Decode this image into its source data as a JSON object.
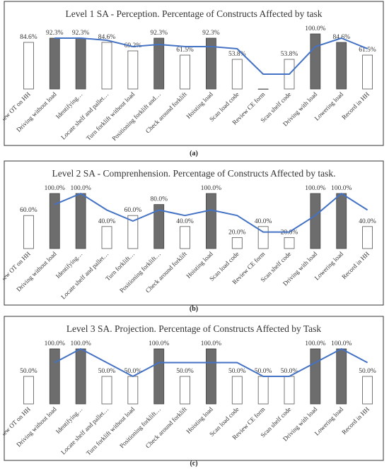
{
  "chart_data": [
    {
      "type": "bar",
      "title": "Level 1 SA - Perception. Percentage of Constructs Affected by task",
      "panel_label": "(a)",
      "categories": [
        "Review OT on HH",
        "Driving without load",
        "Identifying…",
        "Locate shelf and pallet…",
        "Turn forklift without load",
        "Positioning forklift and…",
        "Check around forklift",
        "Hoisting load",
        "Scan load code",
        "Review CE form",
        "Scan shelf code",
        "Driving with load",
        "Lowering load",
        "Record in HH"
      ],
      "values": [
        84.6,
        92.3,
        92.3,
        84.6,
        69.2,
        92.3,
        61.5,
        92.3,
        53.8,
        0,
        53.8,
        100.0,
        84.6,
        61.5
      ],
      "value_labels": [
        "84.6%",
        "92.3%",
        "92.3%",
        "84.6%",
        "69.2%",
        "92.3%",
        "61.5%",
        "92.3%",
        "53.8%",
        "",
        "53.8%",
        "100.0%",
        "84.6%",
        "61.5%"
      ],
      "bar_fill": [
        "white",
        "gray",
        "gray",
        "white",
        "white",
        "gray",
        "white",
        "gray",
        "white",
        "white",
        "white",
        "gray",
        "gray",
        "white"
      ],
      "trend_line": [
        null,
        92.3,
        92.3,
        88.5,
        77.0,
        80.8,
        77.0,
        77.0,
        73.1,
        26.9,
        26.9,
        76.9,
        92.3,
        73.1
      ],
      "ylim": [
        0,
        100
      ],
      "colors": {
        "dark_bar": "#6d6d6d",
        "light_bar": "#ffffff",
        "line": "#4472c4"
      }
    },
    {
      "type": "bar",
      "title": "Level 2 SA - Comprenhension. Percentage of Constructs Affected by task.",
      "panel_label": "(b)",
      "categories": [
        "Review OT on HH",
        "Driving without load",
        "Identifying…",
        "Locate shelf and pallet…",
        "Turn forklift…",
        "Positioning forklift…",
        "Check around forklift",
        "Hoisting load",
        "Scan load code",
        "Review CE form",
        "Scan shelf code",
        "Driving with load",
        "Lowering load",
        "Record in HH"
      ],
      "values": [
        60.0,
        100.0,
        100.0,
        40.0,
        60.0,
        80.0,
        40.0,
        100.0,
        20.0,
        40.0,
        20.0,
        100.0,
        100.0,
        40.0
      ],
      "value_labels": [
        "60.0%",
        "100.0%",
        "100.0%",
        "40.0%",
        "60.0%",
        "80.0%",
        "40.0%",
        "100.0%",
        "20.0%",
        "40.0%",
        "20.0%",
        "100.0%",
        "100.0%",
        "40.0%"
      ],
      "bar_fill": [
        "white",
        "gray",
        "gray",
        "white",
        "white",
        "gray",
        "white",
        "gray",
        "white",
        "white",
        "white",
        "gray",
        "gray",
        "white"
      ],
      "trend_line": [
        null,
        80.0,
        100.0,
        70.0,
        50.0,
        70.0,
        60.0,
        70.0,
        60.0,
        30.0,
        30.0,
        60.0,
        100.0,
        70.0
      ],
      "ylim": [
        0,
        100
      ],
      "colors": {
        "dark_bar": "#6d6d6d",
        "light_bar": "#ffffff",
        "line": "#4472c4"
      }
    },
    {
      "type": "bar",
      "title": "Level 3 SA. Projection. Percentage of Constructs Affected by Task",
      "panel_label": "(c)",
      "categories": [
        "Review OT on HH",
        "Driving without load",
        "Identifying…",
        "Locate shelf and pallet…",
        "Turn forklift without load",
        "Positioning forklift…",
        "Check around forklift",
        "Hoisting load",
        "Scan load code",
        "Review CE form",
        "Scan shelf code",
        "Driving with load",
        "Lowering load",
        "Record in HH"
      ],
      "values": [
        50.0,
        100.0,
        100.0,
        50.0,
        50.0,
        100.0,
        50.0,
        100.0,
        50.0,
        50.0,
        50.0,
        100.0,
        100.0,
        50.0
      ],
      "value_labels": [
        "50.0%",
        "100.0%",
        "100.0%",
        "50.0%",
        "50.0%",
        "100.0%",
        "50.0%",
        "100.0%",
        "50.0%",
        "50.0%",
        "50.0%",
        "100.0%",
        "100.0%",
        "50.0%"
      ],
      "bar_fill": [
        "white",
        "gray",
        "gray",
        "white",
        "white",
        "gray",
        "white",
        "gray",
        "white",
        "white",
        "white",
        "gray",
        "gray",
        "white"
      ],
      "trend_line": [
        null,
        75.0,
        100.0,
        75.0,
        50.0,
        75.0,
        75.0,
        75.0,
        75.0,
        50.0,
        50.0,
        75.0,
        100.0,
        75.0
      ],
      "ylim": [
        0,
        100
      ],
      "colors": {
        "dark_bar": "#6d6d6d",
        "light_bar": "#ffffff",
        "line": "#4472c4"
      }
    }
  ]
}
